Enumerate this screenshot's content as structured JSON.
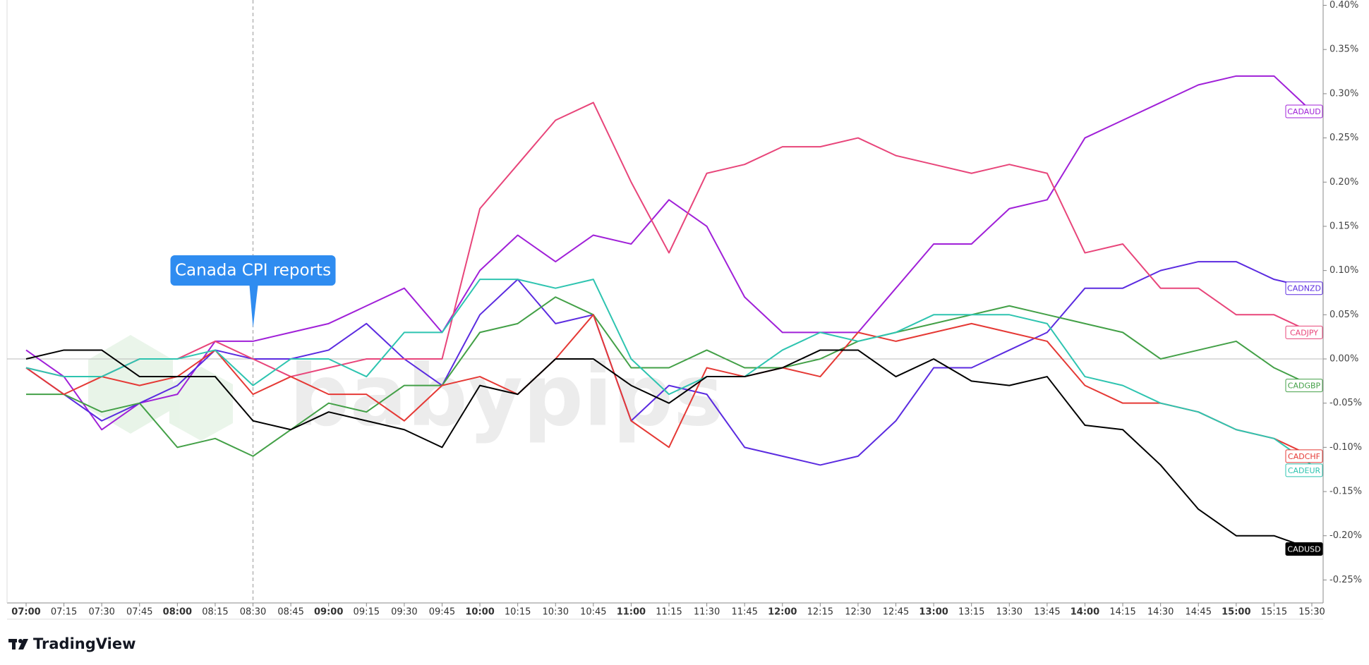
{
  "chart_data": {
    "type": "line",
    "categories": [
      "07:00",
      "07:15",
      "07:30",
      "07:45",
      "08:00",
      "08:15",
      "08:30",
      "08:45",
      "09:00",
      "09:15",
      "09:30",
      "09:45",
      "10:00",
      "10:15",
      "10:30",
      "10:45",
      "11:00",
      "11:15",
      "11:30",
      "11:45",
      "12:00",
      "12:15",
      "12:30",
      "12:45",
      "13:00",
      "13:15",
      "13:30",
      "13:45",
      "14:00",
      "14:15",
      "14:30",
      "14:45",
      "15:00",
      "15:15",
      "15:30"
    ],
    "series": [
      {
        "name": "CADAUD",
        "color": "#a020d8",
        "values": [
          0.01,
          -0.02,
          -0.08,
          -0.05,
          -0.04,
          0.02,
          0.02,
          0.03,
          0.04,
          0.06,
          0.08,
          0.03,
          0.1,
          0.14,
          0.11,
          0.14,
          0.13,
          0.18,
          0.15,
          0.07,
          0.03,
          0.03,
          0.03,
          0.08,
          0.13,
          0.13,
          0.17,
          0.18,
          0.25,
          0.27,
          0.29,
          0.31,
          0.32,
          0.32,
          0.28
        ]
      },
      {
        "name": "CADNZD",
        "color": "#5b2be0",
        "values": [
          -0.01,
          -0.04,
          -0.07,
          -0.05,
          -0.03,
          0.01,
          0.0,
          0.0,
          0.01,
          0.04,
          0.0,
          -0.03,
          0.05,
          0.09,
          0.04,
          0.05,
          -0.07,
          -0.03,
          -0.04,
          -0.1,
          -0.11,
          -0.12,
          -0.11,
          -0.07,
          -0.01,
          -0.01,
          0.01,
          0.03,
          0.08,
          0.08,
          0.1,
          0.11,
          0.11,
          0.09,
          0.08
        ]
      },
      {
        "name": "CADJPY",
        "color": "#e8457a",
        "values": [
          -0.01,
          -0.02,
          -0.02,
          0.0,
          0.0,
          0.02,
          0.0,
          -0.02,
          -0.01,
          0.0,
          0.0,
          0.0,
          0.17,
          0.22,
          0.27,
          0.29,
          0.2,
          0.12,
          0.21,
          0.22,
          0.24,
          0.24,
          0.25,
          0.23,
          0.22,
          0.21,
          0.22,
          0.21,
          0.12,
          0.13,
          0.08,
          0.08,
          0.05,
          0.05,
          0.03
        ]
      },
      {
        "name": "CADGBP",
        "color": "#43a047",
        "values": [
          -0.04,
          -0.04,
          -0.06,
          -0.05,
          -0.1,
          -0.09,
          -0.11,
          -0.08,
          -0.05,
          -0.06,
          -0.03,
          -0.03,
          0.03,
          0.04,
          0.07,
          0.05,
          -0.01,
          -0.01,
          0.01,
          -0.01,
          -0.01,
          0.0,
          0.02,
          0.03,
          0.04,
          0.05,
          0.06,
          0.05,
          0.04,
          0.03,
          0.0,
          0.01,
          0.02,
          -0.01,
          -0.03
        ]
      },
      {
        "name": "CADCHF",
        "color": "#e53935",
        "values": [
          -0.01,
          -0.04,
          -0.02,
          -0.03,
          -0.02,
          0.01,
          -0.04,
          -0.02,
          -0.04,
          -0.04,
          -0.07,
          -0.03,
          -0.02,
          -0.04,
          0.0,
          0.05,
          -0.07,
          -0.1,
          -0.01,
          -0.02,
          -0.01,
          -0.02,
          0.03,
          0.02,
          0.03,
          0.04,
          0.03,
          0.02,
          -0.03,
          -0.05,
          -0.05,
          -0.06,
          -0.08,
          -0.09,
          -0.11
        ]
      },
      {
        "name": "CADEUR",
        "color": "#2ec4b0",
        "values": [
          -0.01,
          -0.02,
          -0.02,
          0.0,
          0.0,
          0.01,
          -0.03,
          0.0,
          0.0,
          -0.02,
          0.03,
          0.03,
          0.09,
          0.09,
          0.08,
          0.09,
          0.0,
          -0.04,
          -0.02,
          -0.02,
          0.01,
          0.03,
          0.02,
          0.03,
          0.05,
          0.05,
          0.05,
          0.04,
          -0.02,
          -0.03,
          -0.05,
          -0.06,
          -0.08,
          -0.09,
          -0.12
        ]
      },
      {
        "name": "CADUSD",
        "color": "#000000",
        "values": [
          0.0,
          0.01,
          0.01,
          -0.02,
          -0.02,
          -0.02,
          -0.07,
          -0.08,
          -0.06,
          -0.07,
          -0.08,
          -0.1,
          -0.03,
          -0.04,
          0.0,
          0.0,
          -0.03,
          -0.05,
          -0.02,
          -0.02,
          -0.01,
          0.01,
          0.01,
          -0.02,
          0.0,
          -0.025,
          -0.03,
          -0.02,
          -0.075,
          -0.08,
          -0.12,
          -0.17,
          -0.2,
          -0.2,
          -0.215
        ]
      }
    ],
    "ylim": [
      -0.276,
      0.406
    ],
    "yticks": [
      {
        "value": 0.4,
        "label": "0.40%"
      },
      {
        "value": 0.35,
        "label": "0.35%"
      },
      {
        "value": 0.3,
        "label": "0.30%"
      },
      {
        "value": 0.25,
        "label": "0.25%"
      },
      {
        "value": 0.2,
        "label": "0.20%"
      },
      {
        "value": 0.15,
        "label": "0.15%"
      },
      {
        "value": 0.1,
        "label": "0.10%"
      },
      {
        "value": 0.05,
        "label": "0.05%"
      },
      {
        "value": 0,
        "label": "0.00%"
      },
      {
        "value": -0.05,
        "label": "-0.05%"
      },
      {
        "value": -0.1,
        "label": "-0.10%"
      },
      {
        "value": -0.15,
        "label": "-0.15%"
      },
      {
        "value": -0.2,
        "label": "-0.20%"
      },
      {
        "value": -0.25,
        "label": "-0.25%"
      }
    ],
    "grid": false,
    "annotation": {
      "text": "Canada CPI reports",
      "at": "08:30"
    },
    "watermark": "babypips",
    "footer": "TradingView"
  }
}
